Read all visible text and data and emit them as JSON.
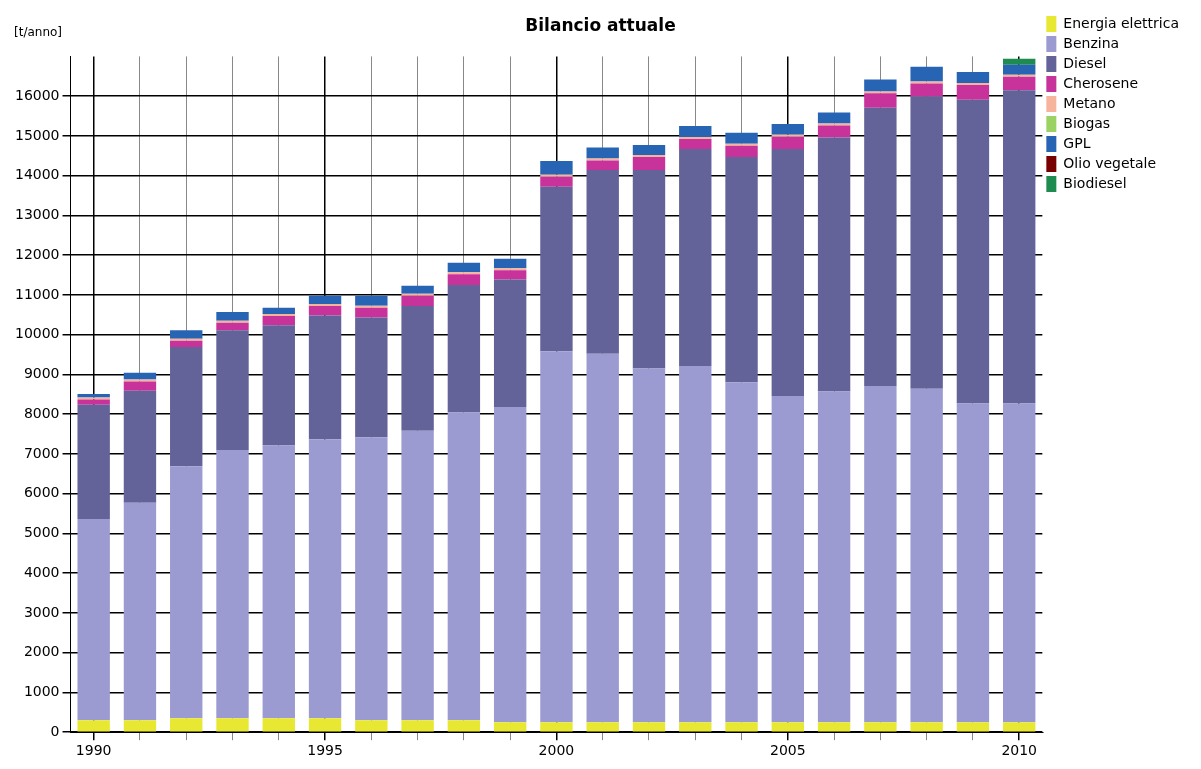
{
  "chart_data": {
    "type": "bar",
    "title": "Bilancio attuale",
    "ylabel": "[t/anno]",
    "stacked": true,
    "grid": true,
    "legend": "top right",
    "categories": [
      "1990",
      null,
      null,
      null,
      null,
      "1995",
      null,
      null,
      null,
      null,
      "2000",
      null,
      null,
      null,
      null,
      "2005",
      null,
      null,
      null,
      null,
      "2010"
    ],
    "ylim": [
      0,
      17000
    ],
    "yticks": [
      0,
      1000,
      2000,
      3000,
      4000,
      5000,
      6000,
      7000,
      8000,
      9000,
      10000,
      11000,
      12000,
      13000,
      14000,
      15000,
      16000
    ],
    "series": [
      {
        "name": "Energia elettrica",
        "color": "#e8e832",
        "values": [
          300,
          300,
          350,
          350,
          350,
          350,
          300,
          300,
          300,
          250,
          250,
          250,
          250,
          250,
          250,
          250,
          250,
          250,
          250,
          250,
          250
        ]
      },
      {
        "name": "Benzina",
        "color": "#9b9bd2",
        "values": [
          5060,
          5470,
          6340,
          6750,
          6860,
          7020,
          7120,
          7280,
          7740,
          7930,
          9330,
          9270,
          8900,
          8960,
          8550,
          8210,
          8320,
          8460,
          8390,
          8020,
          8020
        ]
      },
      {
        "name": "Diesel",
        "color": "#63639a",
        "values": [
          2880,
          2820,
          3000,
          3010,
          3030,
          3110,
          3010,
          3140,
          3210,
          3210,
          4140,
          4620,
          4990,
          5460,
          5670,
          6210,
          6390,
          7000,
          7350,
          7640,
          7880
        ]
      },
      {
        "name": "Cherosene",
        "color": "#c8329b",
        "values": [
          130,
          230,
          160,
          190,
          230,
          240,
          250,
          260,
          270,
          230,
          250,
          240,
          330,
          250,
          280,
          310,
          300,
          360,
          330,
          370,
          340
        ]
      },
      {
        "name": "Metano",
        "color": "#f5b49b",
        "values": [
          50,
          50,
          50,
          50,
          50,
          50,
          50,
          50,
          50,
          50,
          50,
          50,
          50,
          50,
          50,
          50,
          50,
          50,
          50,
          50,
          50
        ]
      },
      {
        "name": "Biogas",
        "color": "#9bd264",
        "values": [
          0,
          0,
          0,
          0,
          0,
          0,
          0,
          0,
          0,
          0,
          0,
          0,
          0,
          0,
          0,
          0,
          0,
          0,
          0,
          0,
          0
        ]
      },
      {
        "name": "GPL",
        "color": "#2864b4",
        "values": [
          90,
          170,
          210,
          220,
          160,
          210,
          250,
          200,
          240,
          240,
          350,
          280,
          250,
          280,
          280,
          270,
          280,
          300,
          370,
          280,
          250
        ]
      },
      {
        "name": "Olio vegetale",
        "color": "#780000",
        "values": [
          0,
          0,
          0,
          0,
          0,
          0,
          0,
          0,
          0,
          0,
          0,
          0,
          0,
          0,
          0,
          0,
          0,
          0,
          0,
          0,
          0
        ]
      },
      {
        "name": "Biodiesel",
        "color": "#1e8c50",
        "values": [
          0,
          0,
          0,
          0,
          0,
          0,
          0,
          0,
          0,
          0,
          0,
          0,
          0,
          0,
          0,
          0,
          0,
          0,
          0,
          0,
          150
        ]
      }
    ]
  }
}
